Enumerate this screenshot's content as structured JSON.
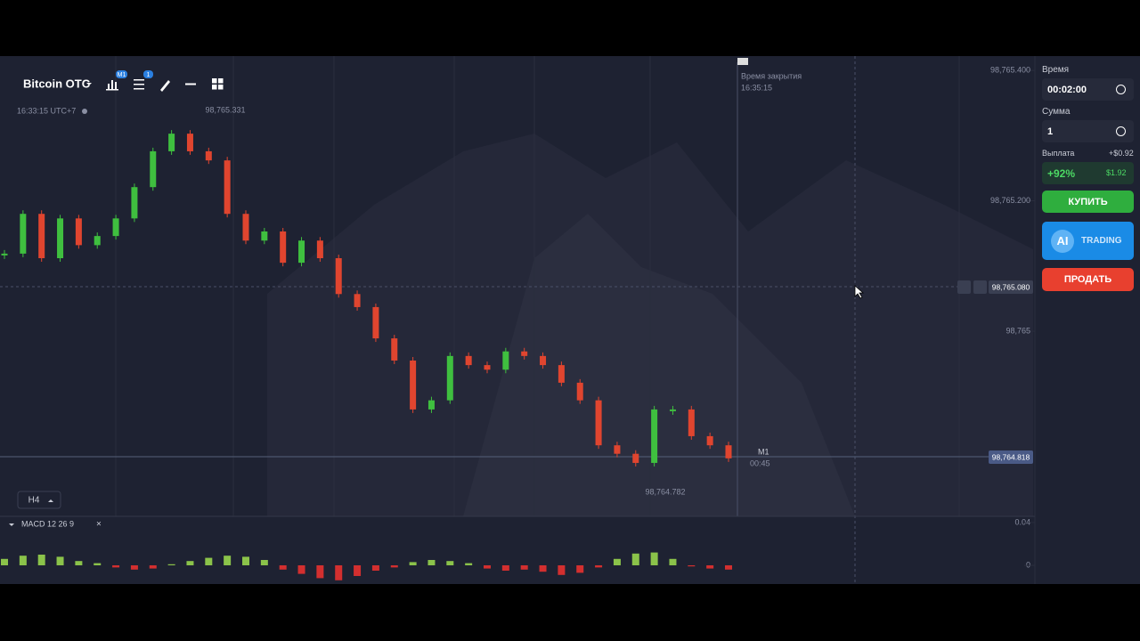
{
  "toolbar": {
    "asset": "Bitcoin OTC",
    "timeframe_badge": "M1",
    "indicator_badge": "1",
    "clock": "16:33:15 UTC+7",
    "chart_timeframe": "H4"
  },
  "chart": {
    "type": "candlestick",
    "high_label": "98,765.331",
    "low_label": "98,764.782",
    "expiry_label": "Время закрытия",
    "expiry_time": "16:35:15",
    "period": "M1",
    "countdown": "00:45",
    "current_price": "98,764.818",
    "strike_price": "98,765.080",
    "ylim": [
      98764.716,
      98765.422
    ],
    "yticks": [
      {
        "value": 98765.4,
        "label": "98,765.400"
      },
      {
        "value": 98765.2,
        "label": "98,765.200"
      },
      {
        "value": 98765,
        "label": "98,765"
      }
    ],
    "closes": [
      98765.119,
      98765.18,
      98765.112,
      98765.173,
      98765.132,
      98765.146,
      98765.173,
      98765.221,
      98765.276,
      98765.303,
      98765.276,
      98765.262,
      98765.18,
      98765.139,
      98765.153,
      98765.105,
      98765.139,
      98765.112,
      98765.057,
      98765.037,
      98764.989,
      98764.955,
      98764.88,
      98764.894,
      98764.962,
      98764.948,
      98764.941,
      98764.969,
      98764.962,
      98764.948,
      98764.921,
      98764.894,
      98764.825,
      98764.812,
      98764.798,
      98764.88,
      98764.88,
      98764.839,
      98764.825,
      98764.805
    ]
  },
  "macd": {
    "title": "MACD 12 26 9",
    "ylim": [
      -0.0175,
      0.0458
    ],
    "yticks": [
      0.04,
      0
    ],
    "values": [
      0.006,
      0.009,
      0.01,
      0.008,
      0.004,
      0.002,
      -0.002,
      -0.004,
      -0.003,
      0.001,
      0.004,
      0.007,
      0.009,
      0.008,
      0.005,
      -0.004,
      -0.008,
      -0.012,
      -0.014,
      -0.01,
      -0.005,
      -0.002,
      0.003,
      0.005,
      0.004,
      0.002,
      -0.003,
      -0.005,
      -0.004,
      -0.006,
      -0.009,
      -0.007,
      -0.002,
      0.006,
      0.011,
      0.012,
      0.006,
      -0.001,
      -0.003,
      -0.004
    ]
  },
  "panel": {
    "time_label": "Время",
    "time_value": "00:02:00",
    "amount_label": "Сумма",
    "amount_value": "1",
    "payout_label": "Выплата",
    "payout_profit": "+$0.92",
    "payout_percent": "+92%",
    "payout_total": "$1.92",
    "buy_button": "КУПИТЬ",
    "ai_badge": "AI",
    "ai_button": "TRADING",
    "sell_button": "ПРОДАТЬ"
  }
}
